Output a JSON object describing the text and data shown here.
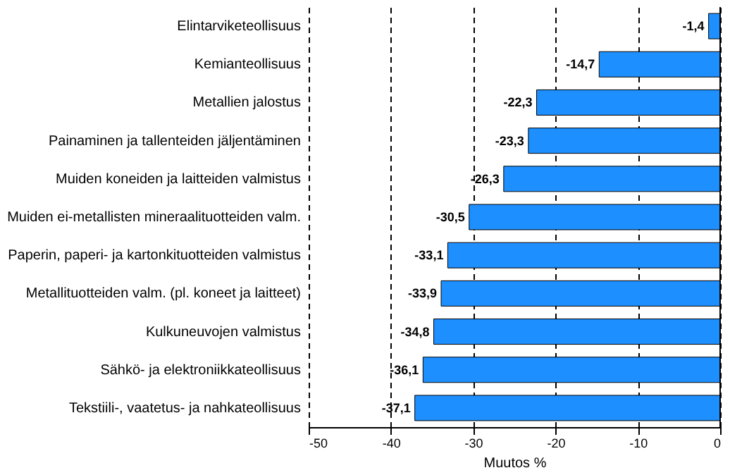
{
  "chart_data": {
    "type": "bar",
    "orientation": "horizontal",
    "xlabel": "Muutos %",
    "categories": [
      "Elintarviketeollisuus",
      "Kemianteollisuus",
      "Metallien jalostus",
      "Painaminen ja tallenteiden jäljentäminen",
      "Muiden koneiden ja laitteiden valmistus",
      "Muiden ei-metallisten mineraalituotteiden valm.",
      "Paperin, paperi- ja kartonkituotteiden valmistus",
      "Metallituotteiden valm. (pl. koneet ja laitteet)",
      "Kulkuneuvojen valmistus",
      "Sähkö- ja elektroniikkateollisuus",
      "Tekstiili-, vaatetus- ja nahkateollisuus"
    ],
    "values": [
      -1.4,
      -14.7,
      -22.3,
      -23.3,
      -26.3,
      -30.5,
      -33.1,
      -33.9,
      -34.8,
      -36.1,
      -37.1
    ],
    "value_labels": [
      "-1,4",
      "-14,7",
      "-22,3",
      "-23,3",
      "-26,3",
      "-30,5",
      "-33,1",
      "-33,9",
      "-34,8",
      "-36,1",
      "-37,1"
    ],
    "color": "#1e8fff",
    "xlim": [
      -50,
      0
    ],
    "xticks": [
      -50,
      -40,
      -30,
      -20,
      -10,
      0
    ],
    "grid": "x"
  }
}
